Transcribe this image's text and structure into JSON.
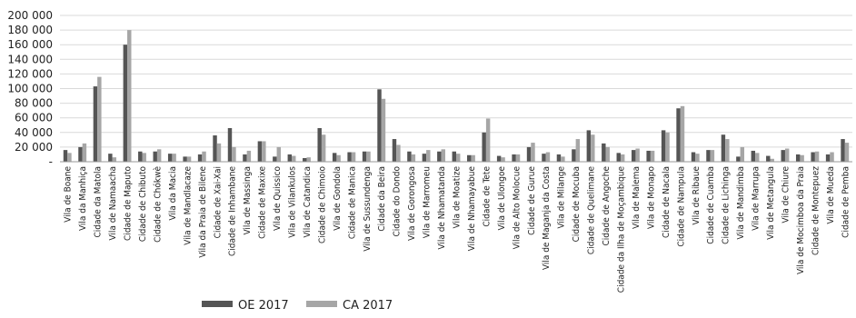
{
  "chart_data": {
    "type": "bar",
    "title": "",
    "xlabel": "",
    "ylabel": "",
    "ylim": [
      0,
      200000
    ],
    "yticks": [
      "-",
      "20 000",
      "40 000",
      "60 000",
      "80 000",
      "100 000",
      "120 000",
      "140 000",
      "160 000",
      "180 000",
      "200 000"
    ],
    "grid": true,
    "legend_position": "bottom",
    "categories": [
      "Vila de Boane",
      "Vila da Manhiça",
      "Cidade da Matola",
      "Vila de Namaacha",
      "Cidade de Maputo",
      "Cidade de Chibuto",
      "Cidade de Chókwè",
      "Vila da Macia",
      "Vila de Mandlacaze",
      "Vila da Praia de Bilene",
      "Cidade de Xai-Xai",
      "Cidade de Inhambane",
      "Vila de Massinga",
      "Cidade de Maxixe",
      "Vila de Quissico",
      "Vila de Vilankulos",
      "Vila de Catandica",
      "Cidade de Chimoio",
      "Vila de Gondola",
      "Cidade de Manica",
      "Vila de Sussundenga",
      "Cidade da Beira",
      "Cidade do Dondo",
      "Vila de Gorongosa",
      "Vila de Marromeu",
      "Vila de Nhamatanda",
      "Vila de Moatize",
      "Vila de Nhamayabue",
      "Cidade de Tete",
      "Vila de Ulongoe",
      "Vila de Alto Molocue",
      "Cidade de Gurue",
      "Vila de Maganja da Costa",
      "Vila de Milange",
      "Cidade de Mocuba",
      "Cidade de Quelimane",
      "Cidade de Angoche",
      "Cidade da Ilha de Moçambique",
      "Vila de Malema",
      "Vila de Monapo",
      "Cidade de Nacala",
      "Cidade de Nampula",
      "Vila de Ribaue",
      "Cidade de Cuamba",
      "Cidade de Lichinga",
      "Vila de Mandimba",
      "Vila de Marrupa",
      "Vila de Metangula",
      "Vila de Chiure",
      "Vila de Mocimboa da Praia",
      "Cidade de Montepuez",
      "Vila de Mueda",
      "Cidade de Pemba"
    ],
    "series": [
      {
        "name": "OE 2017",
        "color": "#555555",
        "values": [
          16000,
          20000,
          103000,
          11000,
          160000,
          14000,
          14000,
          11000,
          7000,
          10000,
          36000,
          46000,
          10000,
          28000,
          7000,
          10000,
          5000,
          46000,
          12000,
          13000,
          14000,
          99000,
          31000,
          14000,
          11000,
          14000,
          14000,
          9000,
          40000,
          8000,
          10000,
          20000,
          11000,
          10000,
          17000,
          43000,
          25000,
          12000,
          16000,
          15000,
          43000,
          73000,
          13000,
          16000,
          37000,
          7000,
          15000,
          8000,
          16000,
          10000,
          13000,
          10000,
          31000
        ]
      },
      {
        "name": "CA 2017",
        "color": "#a6a6a6",
        "values": [
          12000,
          25000,
          116000,
          6000,
          180000,
          12000,
          17000,
          11000,
          7000,
          14000,
          25000,
          20000,
          15000,
          28000,
          20000,
          8000,
          6000,
          37000,
          9000,
          13000,
          14000,
          86000,
          23000,
          10000,
          16000,
          17000,
          11000,
          9000,
          59000,
          6000,
          10000,
          26000,
          13000,
          7000,
          31000,
          37000,
          20000,
          10000,
          18000,
          15000,
          40000,
          76000,
          11000,
          16000,
          31000,
          20000,
          12000,
          4000,
          18000,
          9000,
          14000,
          13000,
          26000
        ]
      }
    ]
  }
}
